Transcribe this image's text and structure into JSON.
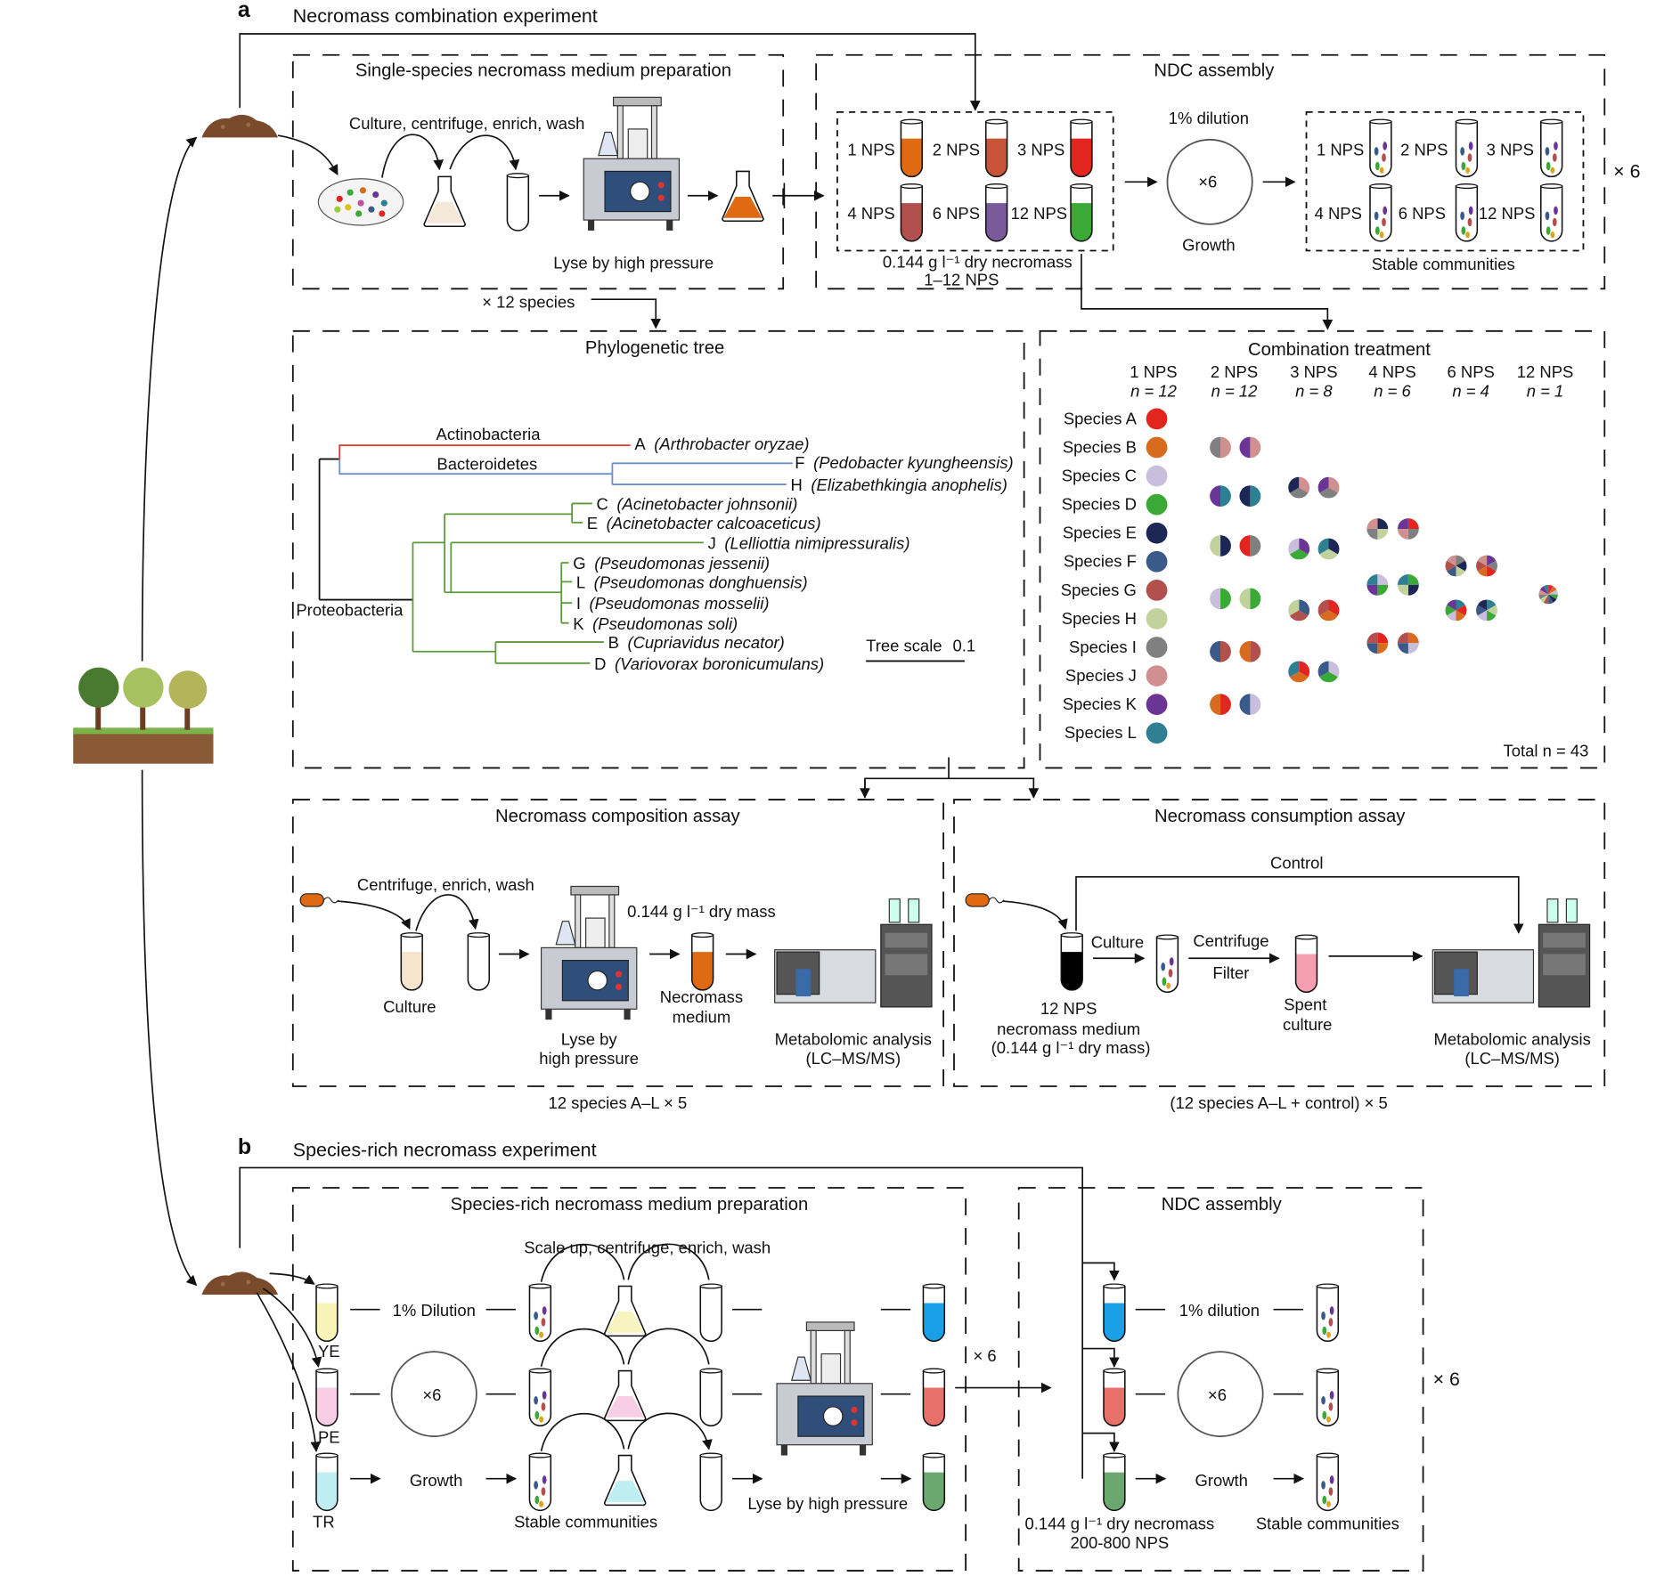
{
  "panel_a": {
    "letter": "a",
    "title": "Necromass combination experiment",
    "prep": {
      "title": "Single-species necromass medium preparation",
      "step": "Culture, centrifuge, enrich, wash",
      "lyse": "Lyse by high pressure",
      "multiplier": "× 12 species"
    },
    "ndc": {
      "title": "NDC assembly",
      "nps_labels": [
        "1 NPS",
        "2 NPS",
        "3 NPS",
        "4 NPS",
        "6 NPS",
        "12 NPS"
      ],
      "dry_necromass": "0.144 g l⁻¹ dry necromass",
      "range": "1–12 NPS",
      "dilution": "1% dilution",
      "cycles": "×6",
      "growth": "Growth",
      "stable": "Stable communities",
      "repeat": "× 6"
    },
    "tree": {
      "title": "Phylogenetic tree",
      "phyla": {
        "actino": "Actinobacteria",
        "bacteroid": "Bacteroidetes",
        "proteo": "Proteobacteria"
      },
      "phyla_colors": {
        "actino": "#e3342f",
        "bacteroid": "#6d8fc7",
        "proteo": "#5a9a3a"
      },
      "leaves": [
        {
          "letter": "A",
          "name": "(Arthrobacter oryzae)"
        },
        {
          "letter": "F",
          "name": "(Pedobacter kyungheensis)"
        },
        {
          "letter": "H",
          "name": "(Elizabethkingia anophelis)"
        },
        {
          "letter": "C",
          "name": "(Acinetobacter johnsonii)"
        },
        {
          "letter": "E",
          "name": "(Acinetobacter calcoaceticus)"
        },
        {
          "letter": "J",
          "name": "(Lelliottia nimipressuralis)"
        },
        {
          "letter": "G",
          "name": "(Pseudomonas jessenii)"
        },
        {
          "letter": "L",
          "name": "(Pseudomonas donghuensis)"
        },
        {
          "letter": "I",
          "name": "(Pseudomonas mosselii)"
        },
        {
          "letter": "K",
          "name": "(Pseudomonas soli)"
        },
        {
          "letter": "B",
          "name": "(Cupriavidus necator)"
        },
        {
          "letter": "D",
          "name": "(Variovorax boronicumulans)"
        }
      ],
      "scale_label": "Tree scale",
      "scale_value": "0.1"
    },
    "combination": {
      "title": "Combination treatment",
      "columns": [
        {
          "nps": "1 NPS",
          "n": "n = 12"
        },
        {
          "nps": "2 NPS",
          "n": "n = 12"
        },
        {
          "nps": "3 NPS",
          "n": "n = 8"
        },
        {
          "nps": "4 NPS",
          "n": "n = 6"
        },
        {
          "nps": "6 NPS",
          "n": "n = 4"
        },
        {
          "nps": "12 NPS",
          "n": "n = 1"
        }
      ],
      "species": [
        {
          "label": "Species A",
          "color": "#e3251f"
        },
        {
          "label": "Species B",
          "color": "#d86c1e"
        },
        {
          "label": "Species C",
          "color": "#c9bedb"
        },
        {
          "label": "Species D",
          "color": "#3aa935"
        },
        {
          "label": "Species E",
          "color": "#1c2755"
        },
        {
          "label": "Species F",
          "color": "#3a5a8a"
        },
        {
          "label": "Species G",
          "color": "#b1504c"
        },
        {
          "label": "Species H",
          "color": "#c1d29c"
        },
        {
          "label": "Species I",
          "color": "#808080"
        },
        {
          "label": "Species J",
          "color": "#d09090"
        },
        {
          "label": "Species K",
          "color": "#6a3594"
        },
        {
          "label": "Species L",
          "color": "#2f7f93"
        }
      ],
      "combos": {
        "2": [
          [
            "J",
            "I"
          ],
          [
            "J",
            "K"
          ],
          [
            "L",
            "K"
          ],
          [
            "L",
            "E"
          ],
          [
            "E",
            "H"
          ],
          [
            "I",
            "A"
          ],
          [
            "D",
            "C"
          ],
          [
            "D",
            "H"
          ],
          [
            "G",
            "F"
          ],
          [
            "G",
            "B"
          ],
          [
            "A",
            "B"
          ],
          [
            "C",
            "F"
          ]
        ],
        "3": [
          [
            "J",
            "I",
            "E"
          ],
          [
            "J",
            "I",
            "K"
          ],
          [
            "K",
            "D",
            "C"
          ],
          [
            "E",
            "H",
            "L"
          ],
          [
            "F",
            "G",
            "H"
          ],
          [
            "A",
            "B",
            "G"
          ],
          [
            "A",
            "B",
            "L"
          ],
          [
            "C",
            "D",
            "F"
          ]
        ],
        "4": [
          [
            "E",
            "H",
            "I",
            "J"
          ],
          [
            "A",
            "I",
            "J",
            "K"
          ],
          [
            "C",
            "D",
            "K",
            "L"
          ],
          [
            "D",
            "E",
            "H",
            "L"
          ],
          [
            "A",
            "B",
            "F",
            "G"
          ],
          [
            "B",
            "C",
            "F",
            "G"
          ]
        ],
        "6": [
          [
            "I",
            "E",
            "H",
            "F",
            "G",
            "J"
          ],
          [
            "K",
            "I",
            "A",
            "B",
            "G",
            "J"
          ],
          [
            "L",
            "A",
            "B",
            "C",
            "D",
            "K"
          ],
          [
            "L",
            "H",
            "D",
            "C",
            "F",
            "E"
          ]
        ],
        "12": [
          [
            "A",
            "B",
            "C",
            "D",
            "E",
            "F",
            "G",
            "H",
            "I",
            "J",
            "K",
            "L"
          ]
        ]
      },
      "total": "Total n = 43"
    },
    "composition": {
      "title": "Necromass composition assay",
      "step": "Centrifuge, enrich, wash",
      "culture": "Culture",
      "dry_mass": "0.144 g l⁻¹ dry mass",
      "medium1": "Necromass",
      "medium2": "medium",
      "lyse1": "Lyse by",
      "lyse2": "high pressure",
      "analysis1": "Metabolomic analysis",
      "analysis2": "(LC–MS/MS)",
      "footer": "12 species A–L × 5"
    },
    "consumption": {
      "title": "Necromass consumption assay",
      "control": "Control",
      "culture": "Culture",
      "centrifuge": "Centrifuge",
      "filter": "Filter",
      "medium1": "12 NPS",
      "medium2": "necromass medium",
      "medium3": "(0.144 g l⁻¹ dry mass)",
      "spent1": "Spent",
      "spent2": "culture",
      "analysis1": "Metabolomic analysis",
      "analysis2": "(LC–MS/MS)",
      "footer": "(12 species A–L + control) × 5"
    }
  },
  "panel_b": {
    "letter": "b",
    "title": "Species-rich necromass experiment",
    "prep": {
      "title": "Species-rich necromass medium preparation",
      "step": "Scale up, centrifuge, enrich, wash",
      "dilution": "1% Dilution",
      "cycles": "×6",
      "growth": "Growth",
      "media": [
        "YE",
        "PE",
        "TR"
      ],
      "stable": "Stable communities",
      "lyse": "Lyse by high pressure",
      "repeat": "× 6"
    },
    "ndc": {
      "title": "NDC assembly",
      "dilution": "1% dilution",
      "cycles": "×6",
      "growth": "Growth",
      "dry_necromass": "0.144 g l⁻¹ dry necromass",
      "range": "200-800 NPS",
      "stable": "Stable communities",
      "repeat": "× 6"
    }
  }
}
